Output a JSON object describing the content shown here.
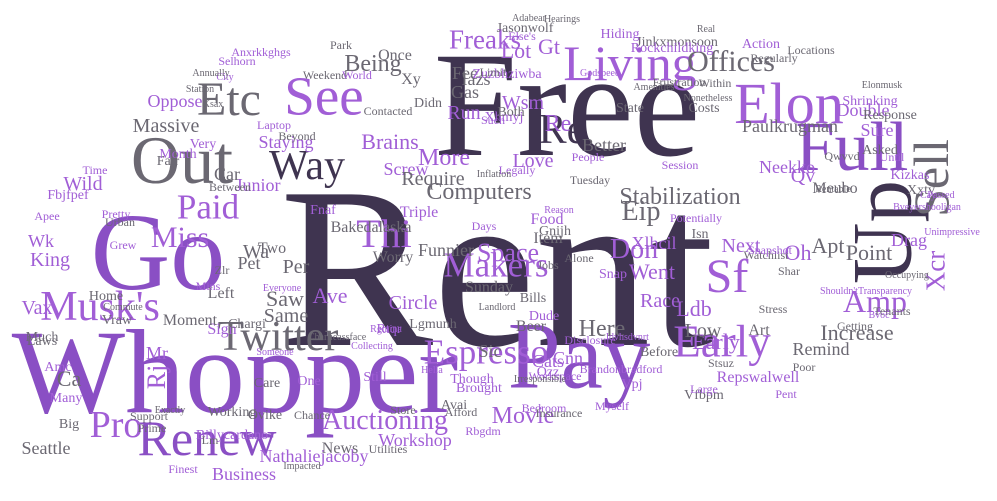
{
  "palette": {
    "dark": "#3f3450",
    "purple": "#8a4fc4",
    "violet": "#a15ed6",
    "lilac": "#c693e8",
    "grey": "#6b6872",
    "light": "#9d9aa3"
  },
  "words": [
    "Rent",
    "Free",
    "Whopper",
    "Go",
    "Pay",
    "Up",
    "Full",
    "Out",
    "Renew",
    "Living",
    "See",
    "Etc",
    "Elon",
    "Sell",
    "Musk's",
    "Twitter",
    "Sf",
    "Early",
    "Thi",
    "Way",
    "Paid",
    "Re",
    "Espresso",
    "Makers",
    "Miss",
    "Pro",
    "Auctioning",
    "Amp",
    "Xcr",
    "Offices",
    "Freaks",
    "Don",
    "Eip",
    "Stabilization",
    "Computers",
    "More",
    "Brains",
    "Being",
    "Fee",
    "Gas",
    "Wsm",
    "Lot",
    "Gt",
    "Space",
    "Circle",
    "Went",
    "Ldb",
    "Oh",
    "Apt",
    "Point",
    "Increase",
    "Early",
    "Here",
    "Low",
    "Movie",
    "Business",
    "Nathaliejacoby",
    "Workshop",
    "News",
    "Repswalwell",
    "Mr",
    "Rj",
    "Ca",
    "Vax",
    "King",
    "Wk",
    "Wild",
    "Massive",
    "Oppose",
    "Double",
    "Sure",
    "Paulkrugman",
    "Better",
    "Re",
    "Run",
    "Screw",
    "Staying",
    "Junior",
    "Two",
    "Per",
    "Saw",
    "Same",
    "Ave",
    "Left",
    "Sign",
    "Pet",
    "Wa",
    "Item",
    "Food",
    "Xlhcil",
    "Next",
    "Race",
    "Cnn",
    "Cats",
    "Sic",
    "Beer",
    "Art",
    "Remind",
    "Drag",
    "Qv",
    "Neekko",
    "Meubo",
    "Xxtv",
    "Triple",
    "Funnier",
    "Bakedalaska",
    "Love",
    "Require",
    "Fnaf",
    "Xhmyj",
    "Iazs",
    "Both",
    "Didn",
    "Contacted",
    "Xy",
    "Once",
    "Jasonwolf",
    "Jinkxmonsoon",
    "Zuzbhziwba",
    "Limit",
    "Costs",
    "State",
    "Response",
    "Shrinking",
    "Car",
    "Fair",
    "Month",
    "Very",
    "Time",
    "Fbjfpef",
    "Apee",
    "Worry",
    "Sunday",
    "Rtqr",
    "Lgmunh",
    "Bills",
    "Dude",
    "Snap",
    "Qzz",
    "Vpj",
    "Before",
    "Vfbpm",
    "Seattle",
    "Big",
    "Many",
    "Amc",
    "Laws",
    "Much",
    "Home",
    "Moment",
    "Vraw",
    "Chargi",
    "Care",
    "One",
    "Still",
    "Though",
    "Brought",
    "Avai",
    "Working",
    "Ovike",
    "Chance",
    "Store",
    "Afford",
    "Rbgdm",
    "Prime",
    "Support",
    "Utilities",
    "Finest",
    "Impacted",
    "Billycardano",
    "Lm",
    "Grew",
    "Pretty",
    "Urban",
    "Zlr",
    "Mins",
    "Gnijh",
    "Alone",
    "Jobs",
    "Landlord",
    "Bedroom",
    "Insurance",
    "Myself",
    "Large",
    "Pent",
    "Poor",
    "Getting",
    "Tenants",
    "Stress",
    "Watchlist",
    "Shar",
    "Isn",
    "Potentially",
    "Asked",
    "Until",
    "Cay",
    "Qwvvd",
    "People",
    "Tuesday",
    "Session",
    "Days",
    "Such",
    "Legally",
    "Beyond",
    "Laptop",
    "Between",
    "Xsax",
    "City",
    "Station",
    "Annually",
    "Selhorn",
    "Anxrkkghgs",
    "Weekend",
    "World",
    "Park",
    "Else's",
    "Adabear",
    "Hearings",
    "Hiding",
    "Rockchildking",
    "Real",
    "Amenities",
    "Frustration",
    "Within",
    "Regularly",
    "Locations",
    "Action",
    "Elonmusk",
    "Nonetheless",
    "Godspeed",
    "Inflation",
    "Workspace",
    "Irresponsible",
    "Hella",
    "Collecting",
    "Rgmina",
    "Charlieassface",
    "Brandonbradford",
    "Stsuz",
    "Disclosure",
    "Jdvhsdvnrt",
    "Snapshot",
    "Kizkas",
    "Unimpressive",
    "Passed",
    "Bveyershooligan",
    "Rentable",
    "Reason",
    "Someone",
    "Everyone",
    "Commute",
    "Exactly",
    "Occupying",
    "Bvoc",
    "Transparency",
    "Shouldn't",
    "Depending",
    "Headers",
    "Amount",
    "Legislation"
  ]
}
